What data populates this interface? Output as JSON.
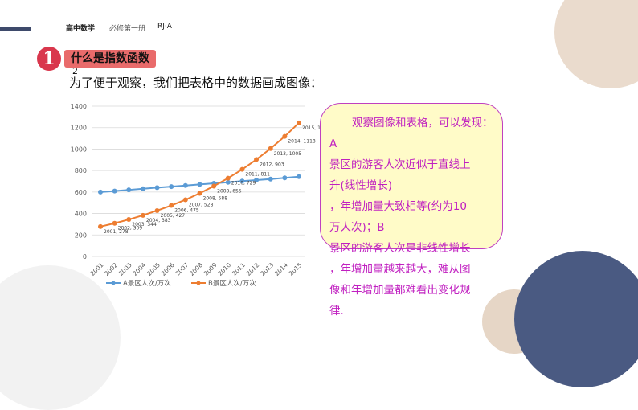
{
  "header": {
    "subject": "高中数学",
    "book": "必修第一册",
    "edition": "RJ·A"
  },
  "section": {
    "number": "1",
    "title": "什么是指数函数",
    "stray_mark": "2"
  },
  "intro": "为了便于观察，我们把表格中的数据画成图像：",
  "note": {
    "lines": [
      "观察图像和表格，可以发现：",
      "A",
      "景区的游客人次近似于直线上",
      "升(线性增长)",
      "，年增加量大致相等(约为10",
      "万人次)；B",
      "景区的游客人次是非线性增长",
      "，年增加量越来越大，难从图",
      "像和年增加量都难看出变化规",
      "律."
    ]
  },
  "colors": {
    "seriesA": "#5b9bd5",
    "seriesB": "#ed7d31",
    "note_border": "#c040c0",
    "note_text": "#c020c0",
    "note_bg": "#fffbc8"
  },
  "chart_data": {
    "type": "line",
    "categories": [
      "2001",
      "2002",
      "2003",
      "2004",
      "2005",
      "2006",
      "2007",
      "2008",
      "2009",
      "2010",
      "2011",
      "2012",
      "2013",
      "2014",
      "2015"
    ],
    "series": [
      {
        "name": "A景区人次/万次",
        "values": [
          600,
          609,
          620,
          631,
          641,
          650,
          661,
          671,
          681,
          691,
          702,
          711,
          721,
          732,
          743
        ]
      },
      {
        "name": "B景区人次/万次",
        "values": [
          278,
          309,
          344,
          383,
          427,
          475,
          528,
          588,
          655,
          729,
          811,
          903,
          1005,
          1118,
          1244
        ]
      }
    ],
    "ylim": [
      0,
      1400
    ],
    "yticks": [
      0,
      200,
      400,
      600,
      800,
      1000,
      1200,
      1400
    ],
    "grid": true,
    "legend": "bottom",
    "data_label_series": "B景区人次/万次"
  }
}
